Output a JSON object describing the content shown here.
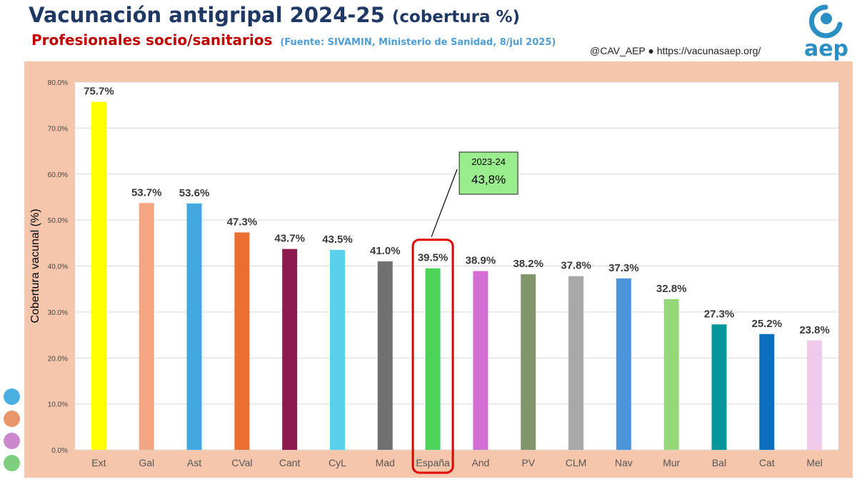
{
  "header": {
    "title": "Vacunación antigripal 2024-25",
    "title_suffix": "(cobertura %)",
    "subtitle": "Profesionales socio/sanitarios",
    "source": "(Fuente: SIVAMIN, Ministerio de Sanidad, 8/jul 2025)",
    "credits": "@CAV_AEP ● https://vacunasaep.org/"
  },
  "logo": {
    "text": "aep",
    "icon": "aep-logo-icon"
  },
  "decor_dots": [
    {
      "color": "#4aaee0",
      "icon": "blue-dot-icon"
    },
    {
      "color": "#e8966a",
      "icon": "orange-dot-icon"
    },
    {
      "color": "#cc88cc",
      "icon": "purple-dot-icon"
    },
    {
      "color": "#7dcf7d",
      "icon": "green-dot-icon"
    }
  ],
  "chart_data": {
    "type": "bar",
    "ylabel": "Cobertura vacunal (%)",
    "xlabel": "",
    "ylim": [
      0,
      80
    ],
    "yticks": [
      "0.0%",
      "10.0%",
      "20.0%",
      "30.0%",
      "40.0%",
      "50.0%",
      "60.0%",
      "70.0%",
      "80.0%"
    ],
    "grid": true,
    "categories": [
      "Ext",
      "Gal",
      "Ast",
      "CVal",
      "Cant",
      "CyL",
      "Mad",
      "España",
      "And",
      "PV",
      "CLM",
      "Nav",
      "Mur",
      "Bal",
      "Cat",
      "Mel"
    ],
    "values": [
      75.7,
      53.7,
      53.6,
      47.3,
      43.7,
      43.5,
      41.0,
      39.5,
      38.9,
      38.2,
      37.8,
      37.3,
      32.8,
      27.3,
      25.2,
      23.8
    ],
    "data_labels": [
      "75.7%",
      "53.7%",
      "53.6%",
      "47.3%",
      "43.7%",
      "43.5%",
      "41.0%",
      "39.5%",
      "38.9%",
      "38.2%",
      "37.8%",
      "37.3%",
      "32.8%",
      "27.3%",
      "25.2%",
      "23.8%"
    ],
    "colors": [
      "#ffff00",
      "#f4a582",
      "#41a9e0",
      "#ea6f30",
      "#8c1a4f",
      "#5bcfee",
      "#707070",
      "#4cd35a",
      "#d46ed4",
      "#82956a",
      "#a8a8a8",
      "#4d95da",
      "#95d879",
      "#06959a",
      "#0c6fbe",
      "#f0c8ec"
    ],
    "highlight": "España",
    "highlight_color": "#e00000",
    "annotation": {
      "label": "2023-24",
      "value": "43,8%",
      "color": "#9aed8c"
    }
  }
}
